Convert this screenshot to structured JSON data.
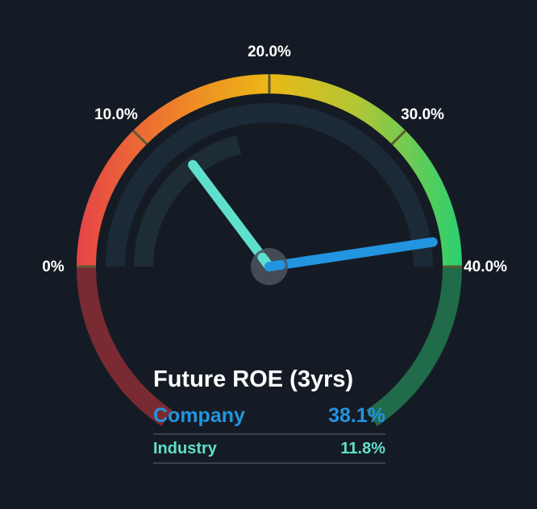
{
  "chart_data": {
    "type": "gauge",
    "title": "Future ROE (3yrs)",
    "range": [
      0,
      40
    ],
    "tick_labels": [
      "0%",
      "10.0%",
      "20.0%",
      "30.0%",
      "40.0%"
    ],
    "series": [
      {
        "name": "Company",
        "value": 38.1,
        "display": "38.1%",
        "color": "#2394df"
      },
      {
        "name": "Industry",
        "value": 11.8,
        "display": "11.8%",
        "color": "#5fe0cc"
      }
    ]
  }
}
